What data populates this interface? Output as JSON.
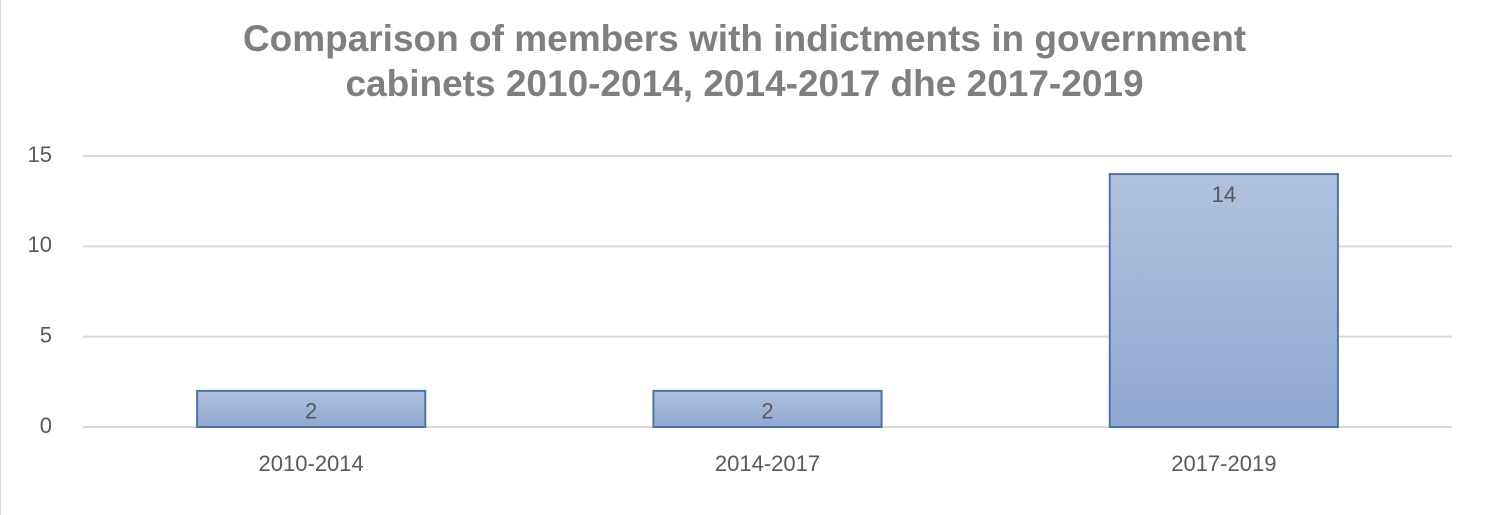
{
  "chart_data": {
    "type": "bar",
    "title": "Comparison of members with indictments in government cabinets 2010-2014, 2014-2017 dhe 2017-2019",
    "categories": [
      "2010-2014",
      "2014-2017",
      "2017-2019"
    ],
    "values": [
      2,
      2,
      14
    ],
    "color": "#9bb1d6",
    "ylim": [
      0,
      15
    ],
    "yticks": [
      0,
      5,
      10,
      15
    ],
    "grid": true,
    "data_labels": true
  }
}
